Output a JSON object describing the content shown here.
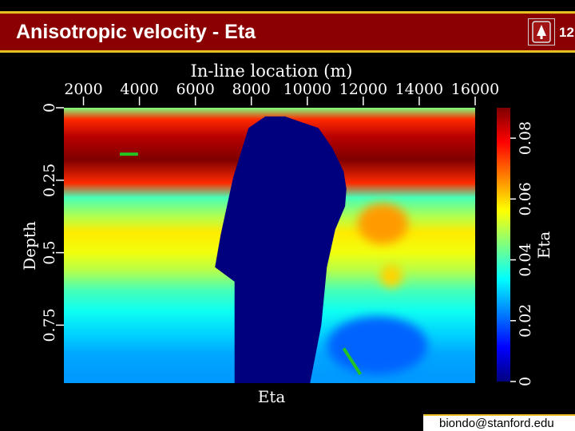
{
  "slide": {
    "title": "Anisotropic velocity - Eta",
    "slide_number": "12",
    "footer": "biondo@stanford.edu"
  },
  "colors": {
    "title_bar": "#8b0000",
    "title_rule": "#e8c020",
    "background": "#000000",
    "salt_body": "#00007a"
  },
  "logo": {
    "icon": "stanford-seal-icon"
  },
  "chart_data": {
    "type": "heatmap",
    "title": "",
    "top_label": "In-line location (m)",
    "xlabel": "Eta",
    "ylabel": "Depth",
    "x_ticks": [
      "2000",
      "4000",
      "6000",
      "8000",
      "10000",
      "12000",
      "14000",
      "16000"
    ],
    "x_tick_values": [
      2000,
      4000,
      6000,
      8000,
      10000,
      12000,
      14000,
      16000
    ],
    "xlim": [
      1300,
      16000
    ],
    "y_ticks": [
      "0",
      "0.25",
      "0.5",
      "0.75"
    ],
    "y_tick_values": [
      0,
      0.25,
      0.5,
      0.75
    ],
    "ylim": [
      0,
      0.95
    ],
    "colorbar": {
      "label": "Eta",
      "ticks": [
        "0",
        "0.02",
        "0.04",
        "0.06",
        "0.08"
      ],
      "tick_values": [
        0,
        0.02,
        0.04,
        0.06,
        0.08
      ],
      "range": [
        0,
        0.09
      ],
      "colormap": "jet"
    },
    "colormap_stops": [
      "#00007f",
      "#0000ff",
      "#007fff",
      "#00ffff",
      "#7fff7f",
      "#ffff00",
      "#ff7f00",
      "#ff0000",
      "#7f0000"
    ],
    "eta_bands": [
      {
        "depth": 0.0,
        "eta": 0.045
      },
      {
        "depth": 0.04,
        "eta": 0.075
      },
      {
        "depth": 0.1,
        "eta": 0.085
      },
      {
        "depth": 0.18,
        "eta": 0.09
      },
      {
        "depth": 0.26,
        "eta": 0.075
      },
      {
        "depth": 0.31,
        "eta": 0.04
      },
      {
        "depth": 0.38,
        "eta": 0.05
      },
      {
        "depth": 0.43,
        "eta": 0.058
      },
      {
        "depth": 0.5,
        "eta": 0.055
      },
      {
        "depth": 0.56,
        "eta": 0.05
      },
      {
        "depth": 0.63,
        "eta": 0.04
      },
      {
        "depth": 0.7,
        "eta": 0.035
      },
      {
        "depth": 0.78,
        "eta": 0.03
      },
      {
        "depth": 0.85,
        "eta": 0.026
      },
      {
        "depth": 0.92,
        "eta": 0.025
      }
    ],
    "salt_body": {
      "eta": 0,
      "outline": [
        [
          7400,
          0.95
        ],
        [
          7400,
          0.6
        ],
        [
          6700,
          0.55
        ],
        [
          6900,
          0.44
        ],
        [
          7350,
          0.24
        ],
        [
          7900,
          0.07
        ],
        [
          8500,
          0.03
        ],
        [
          9200,
          0.03
        ],
        [
          10400,
          0.07
        ],
        [
          10900,
          0.14
        ],
        [
          11300,
          0.22
        ],
        [
          11400,
          0.28
        ],
        [
          11350,
          0.34
        ],
        [
          11000,
          0.42
        ],
        [
          10700,
          0.55
        ],
        [
          10500,
          0.75
        ],
        [
          10100,
          0.95
        ]
      ]
    },
    "anomalies": [
      {
        "x": 12700,
        "depth": 0.4,
        "rx": 900,
        "ry": 0.07,
        "eta": 0.065
      },
      {
        "x": 13000,
        "depth": 0.58,
        "rx": 400,
        "ry": 0.04,
        "eta": 0.06
      },
      {
        "x": 12500,
        "depth": 0.82,
        "rx": 1800,
        "ry": 0.1,
        "eta": 0.02
      }
    ],
    "markers": [
      {
        "x1": 3300,
        "d1": 0.16,
        "x2": 3950,
        "d2": 0.16
      },
      {
        "x1": 11300,
        "d1": 0.83,
        "x2": 11900,
        "d2": 0.92
      }
    ]
  }
}
